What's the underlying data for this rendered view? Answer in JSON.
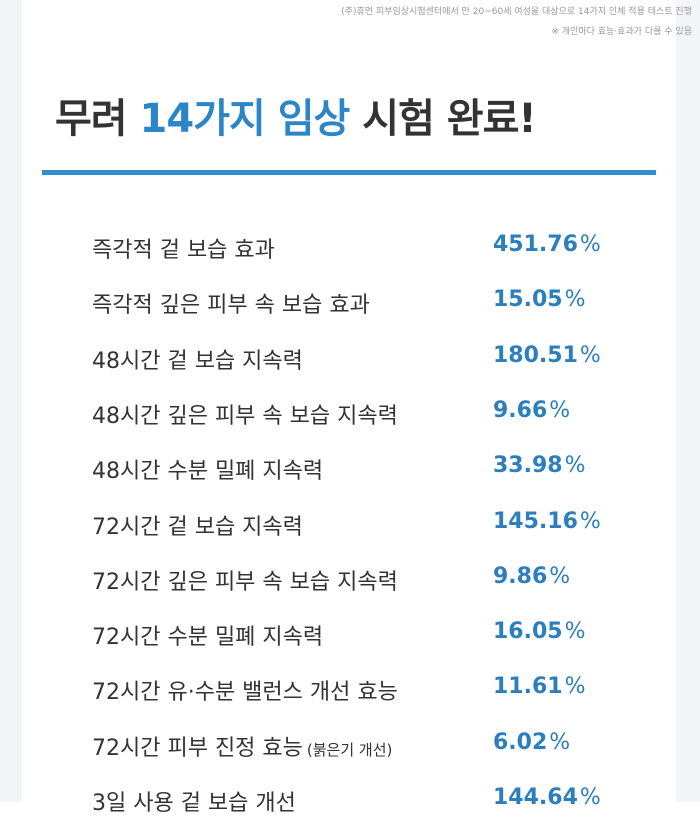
{
  "notes": [
    "(주)휴먼 피부임상시험센터에서 만 20~60세 여성을 대상으로 14가지 인체 적용 테스트 진행",
    "※ 개인마다 효능·효과가 다를 수 있음"
  ],
  "title": {
    "before": "무려",
    "highlight": "14가지 임상",
    "after": "시험 완료!"
  },
  "rows": [
    {
      "label": "즉각적 겉 보습 효과",
      "value": "451.76",
      "unit": "%"
    },
    {
      "label": "즉각적 깊은 피부 속 보습 효과",
      "value": "15.05",
      "unit": "%"
    },
    {
      "label": "48시간 겉 보습 지속력",
      "value": "180.51",
      "unit": "%"
    },
    {
      "label": "48시간 깊은 피부 속 보습 지속력",
      "value": "9.66",
      "unit": "%"
    },
    {
      "label": "48시간 수분 밀폐 지속력",
      "value": "33.98",
      "unit": "%"
    },
    {
      "label": "72시간 겉 보습 지속력",
      "value": "145.16",
      "unit": "%"
    },
    {
      "label": "72시간 깊은 피부 속 보습 지속력",
      "value": "9.86",
      "unit": "%"
    },
    {
      "label": "72시간 수분 밀폐 지속력",
      "value": "16.05",
      "unit": "%"
    },
    {
      "label": "72시간 유·수분 밸런스 개선 효능",
      "value": "11.61",
      "unit": "%"
    },
    {
      "label": "72시간 피부 진정 효능",
      "note": "(붉은기 개선)",
      "value": "6.02",
      "unit": "%"
    },
    {
      "label": "3일 사용 겉 보습 개선",
      "value": "144.64",
      "unit": "%"
    }
  ]
}
